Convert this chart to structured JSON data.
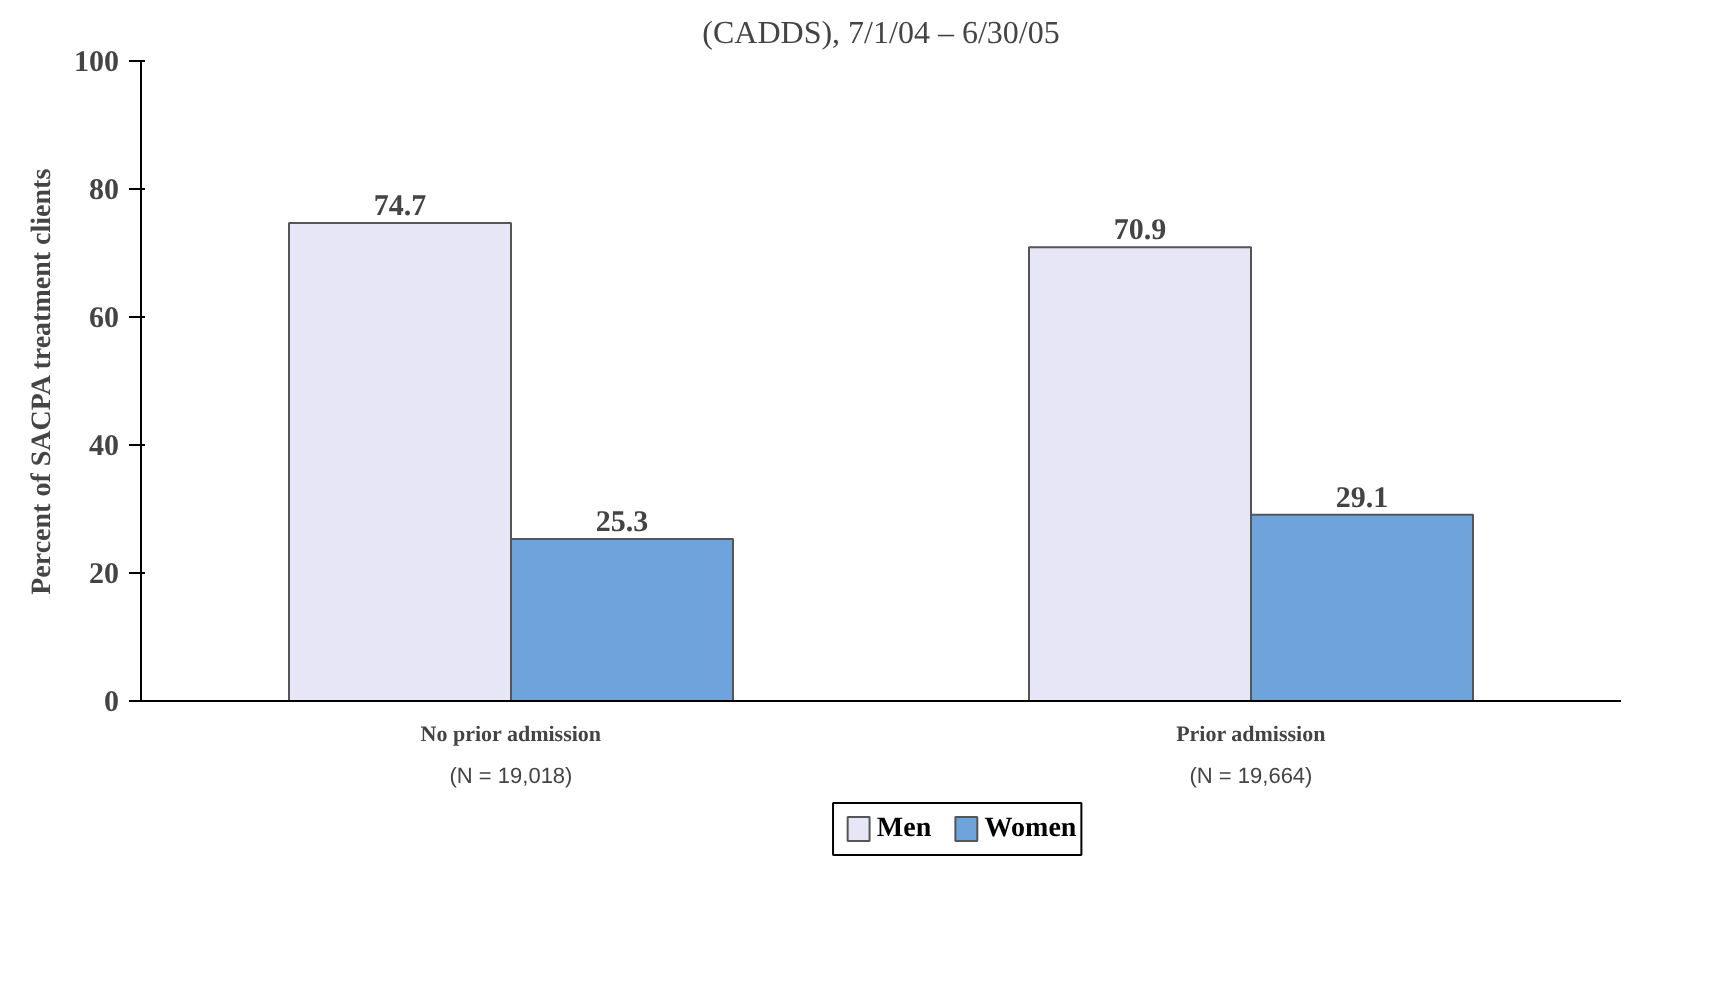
{
  "chart_data": {
    "type": "bar",
    "title": "(CADDS), 7/1/04 – 6/30/05",
    "ylabel": "Percent of SACPA treatment clients",
    "categories": [
      "No prior admission\n(N = 19,018)",
      "Prior admission\n(N = 19,664)"
    ],
    "series": [
      {
        "name": "Men",
        "color": "#e6e6f7",
        "values": [
          74.7,
          70.9
        ]
      },
      {
        "name": "Women",
        "color": "#6fa3dc",
        "values": [
          25.3,
          29.1
        ]
      }
    ],
    "ylim": [
      0,
      100
    ],
    "yticks": [
      0,
      20,
      40,
      60,
      80,
      100
    ],
    "grid": false,
    "legend": "bottom",
    "data_labels": true
  }
}
